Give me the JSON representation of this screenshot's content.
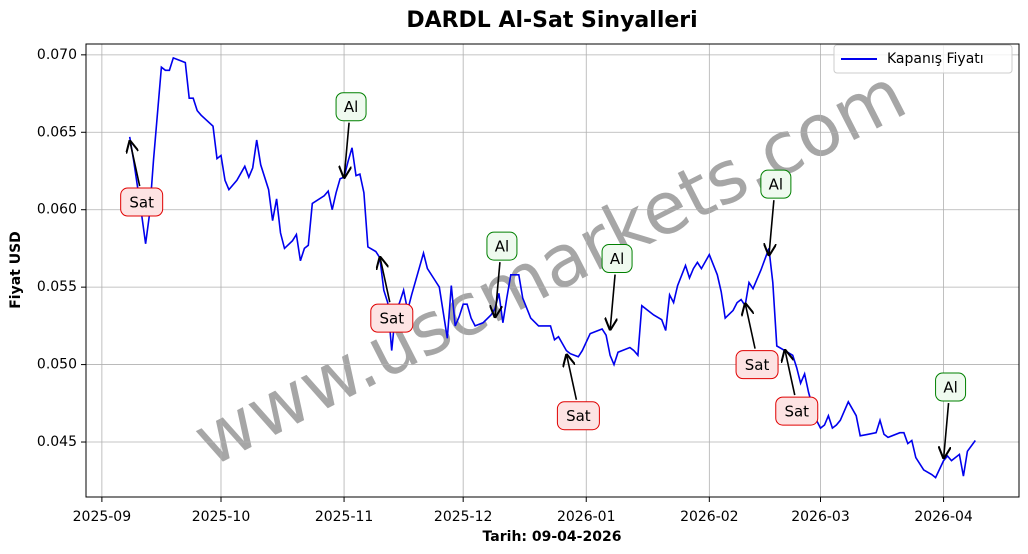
{
  "chart_data": {
    "type": "line",
    "title": "DARDL Al-Sat Sinyalleri",
    "xlabel": "Tarih: 09-04-2026",
    "ylabel": "Fiyat USD",
    "watermark": "www.uscmarkets.com",
    "x": [
      "2025-09-08",
      "2025-09-09",
      "2025-09-11",
      "2025-09-12",
      "2025-09-13",
      "2025-09-14",
      "2025-09-16",
      "2025-09-17",
      "2025-09-18",
      "2025-09-19",
      "2025-09-21",
      "2025-09-22",
      "2025-09-23",
      "2025-09-24",
      "2025-09-25",
      "2025-09-26",
      "2025-09-29",
      "2025-09-30",
      "2025-10-01",
      "2025-10-02",
      "2025-10-03",
      "2025-10-05",
      "2025-10-07",
      "2025-10-08",
      "2025-10-09",
      "2025-10-10",
      "2025-10-11",
      "2025-10-13",
      "2025-10-14",
      "2025-10-15",
      "2025-10-16",
      "2025-10-17",
      "2025-10-19",
      "2025-10-20",
      "2025-10-21",
      "2025-10-22",
      "2025-10-23",
      "2025-10-24",
      "2025-10-27",
      "2025-10-28",
      "2025-10-29",
      "2025-10-30",
      "2025-10-31",
      "2025-11-01",
      "2025-11-02",
      "2025-11-03",
      "2025-11-04",
      "2025-11-05",
      "2025-11-06",
      "2025-11-07",
      "2025-11-09",
      "2025-11-10",
      "2025-11-11",
      "2025-11-12",
      "2025-11-13",
      "2025-11-14",
      "2025-11-15",
      "2025-11-16",
      "2025-11-17",
      "2025-11-18",
      "2025-11-21",
      "2025-11-22",
      "2025-11-24",
      "2025-11-25",
      "2025-11-27",
      "2025-11-28",
      "2025-11-29",
      "2025-11-30",
      "2025-12-01",
      "2025-12-02",
      "2025-12-03",
      "2025-12-04",
      "2025-12-06",
      "2025-12-08",
      "2025-12-09",
      "2025-12-10",
      "2025-12-11",
      "2025-12-12",
      "2025-12-13",
      "2025-12-15",
      "2025-12-16",
      "2025-12-18",
      "2025-12-20",
      "2025-12-23",
      "2025-12-24",
      "2025-12-25",
      "2025-12-27",
      "2025-12-28",
      "2025-12-30",
      "2025-12-31",
      "2026-01-02",
      "2026-01-04",
      "2026-01-05",
      "2026-01-06",
      "2026-01-07",
      "2026-01-08",
      "2026-01-09",
      "2026-01-12",
      "2026-01-13",
      "2026-01-14",
      "2026-01-15",
      "2026-01-18",
      "2026-01-20",
      "2026-01-21",
      "2026-01-22",
      "2026-01-23",
      "2026-01-24",
      "2026-01-26",
      "2026-01-27",
      "2026-01-28",
      "2026-01-29",
      "2026-01-30",
      "2026-02-01",
      "2026-02-03",
      "2026-02-04",
      "2026-02-05",
      "2026-02-07",
      "2026-02-08",
      "2026-02-09",
      "2026-02-10",
      "2026-02-11",
      "2026-02-12",
      "2026-02-14",
      "2026-02-16",
      "2026-02-17",
      "2026-02-18",
      "2026-02-20",
      "2026-02-22",
      "2026-02-23",
      "2026-02-24",
      "2026-02-25",
      "2026-02-26",
      "2026-02-28",
      "2026-03-01",
      "2026-03-02",
      "2026-03-03",
      "2026-03-04",
      "2026-03-05",
      "2026-03-06",
      "2026-03-08",
      "2026-03-10",
      "2026-03-11",
      "2026-03-13",
      "2026-03-15",
      "2026-03-16",
      "2026-03-17",
      "2026-03-18",
      "2026-03-21",
      "2026-03-22",
      "2026-03-23",
      "2026-03-24",
      "2026-03-25",
      "2026-03-27",
      "2026-03-29",
      "2026-03-30",
      "2026-04-01",
      "2026-04-02",
      "2026-04-03",
      "2026-04-05",
      "2026-04-06",
      "2026-04-07",
      "2026-04-09"
    ],
    "series": [
      {
        "name": "Kapanış Fiyatı",
        "color": "#0000ee",
        "values": [
          0.0647,
          0.0632,
          0.0597,
          0.0578,
          0.0597,
          0.0632,
          0.0692,
          0.069,
          0.069,
          0.0698,
          0.0696,
          0.0695,
          0.0672,
          0.0672,
          0.0664,
          0.0661,
          0.0654,
          0.0633,
          0.0635,
          0.0619,
          0.0613,
          0.0619,
          0.0628,
          0.0621,
          0.0627,
          0.0645,
          0.0629,
          0.0613,
          0.0593,
          0.0607,
          0.0585,
          0.0575,
          0.058,
          0.0584,
          0.0567,
          0.0575,
          0.0577,
          0.0604,
          0.0609,
          0.0612,
          0.06,
          0.0611,
          0.062,
          0.0621,
          0.0631,
          0.064,
          0.0622,
          0.0623,
          0.0611,
          0.0576,
          0.0573,
          0.0569,
          0.0548,
          0.054,
          0.0509,
          0.0535,
          0.054,
          0.0548,
          0.0535,
          0.0545,
          0.0572,
          0.0562,
          0.0554,
          0.055,
          0.0517,
          0.0551,
          0.0525,
          0.0531,
          0.0539,
          0.0539,
          0.053,
          0.0525,
          0.0527,
          0.0532,
          0.0536,
          0.0546,
          0.0527,
          0.0543,
          0.0558,
          0.0558,
          0.0543,
          0.053,
          0.0525,
          0.0525,
          0.0516,
          0.0518,
          0.0509,
          0.0507,
          0.0505,
          0.0509,
          0.052,
          0.0522,
          0.0523,
          0.0519,
          0.0506,
          0.05,
          0.0508,
          0.0511,
          0.0509,
          0.0506,
          0.0538,
          0.0532,
          0.0529,
          0.0522,
          0.0545,
          0.054,
          0.0551,
          0.0564,
          0.0556,
          0.0562,
          0.0566,
          0.0562,
          0.0571,
          0.0558,
          0.0547,
          0.053,
          0.0535,
          0.054,
          0.0542,
          0.0538,
          0.0553,
          0.0549,
          0.0561,
          0.0575,
          0.0553,
          0.0512,
          0.0509,
          0.0506,
          0.0498,
          0.0488,
          0.0494,
          0.0482,
          0.0464,
          0.0459,
          0.0461,
          0.0467,
          0.0459,
          0.0461,
          0.0464,
          0.0476,
          0.0467,
          0.0454,
          0.0455,
          0.0456,
          0.0464,
          0.0455,
          0.0453,
          0.0456,
          0.0456,
          0.0449,
          0.0451,
          0.044,
          0.0432,
          0.0429,
          0.0427,
          0.0438,
          0.0441,
          0.0438,
          0.0442,
          0.0428,
          0.0444,
          0.0451
        ]
      }
    ],
    "annotations": [
      {
        "text": "Sat",
        "x": "2025-09-08",
        "y": 0.0645
      },
      {
        "text": "Al",
        "x": "2025-11-01",
        "y": 0.062
      },
      {
        "text": "Sat",
        "x": "2025-11-10",
        "y": 0.057
      },
      {
        "text": "Al",
        "x": "2025-12-09",
        "y": 0.053
      },
      {
        "text": "Sat",
        "x": "2025-12-27",
        "y": 0.0507
      },
      {
        "text": "Al",
        "x": "2026-01-07",
        "y": 0.0522
      },
      {
        "text": "Sat",
        "x": "2026-02-10",
        "y": 0.054
      },
      {
        "text": "Al",
        "x": "2026-02-16",
        "y": 0.057
      },
      {
        "text": "Sat",
        "x": "2026-02-20",
        "y": 0.051
      },
      {
        "text": "Al",
        "x": "2026-04-01",
        "y": 0.0439
      }
    ],
    "xlim": [
      "2025-08-28",
      "2026-04-20"
    ],
    "xticks": [
      {
        "value": "2025-09-01",
        "label": "2025-09"
      },
      {
        "value": "2025-10-01",
        "label": "2025-10"
      },
      {
        "value": "2025-11-01",
        "label": "2025-11"
      },
      {
        "value": "2025-12-01",
        "label": "2025-12"
      },
      {
        "value": "2026-01-01",
        "label": "2026-01"
      },
      {
        "value": "2026-02-01",
        "label": "2026-02"
      },
      {
        "value": "2026-03-01",
        "label": "2026-03"
      },
      {
        "value": "2026-04-01",
        "label": "2026-04"
      }
    ],
    "ylim": [
      0.04145,
      0.0707
    ],
    "yticks": [
      0.045,
      {
        "value": 0.05,
        "label": "0.050"
      },
      0.055,
      {
        "value": 0.06,
        "label": "0.060"
      },
      0.065,
      {
        "value": 0.07,
        "label": "0.070"
      }
    ],
    "grid": true,
    "legend": "upper right"
  }
}
